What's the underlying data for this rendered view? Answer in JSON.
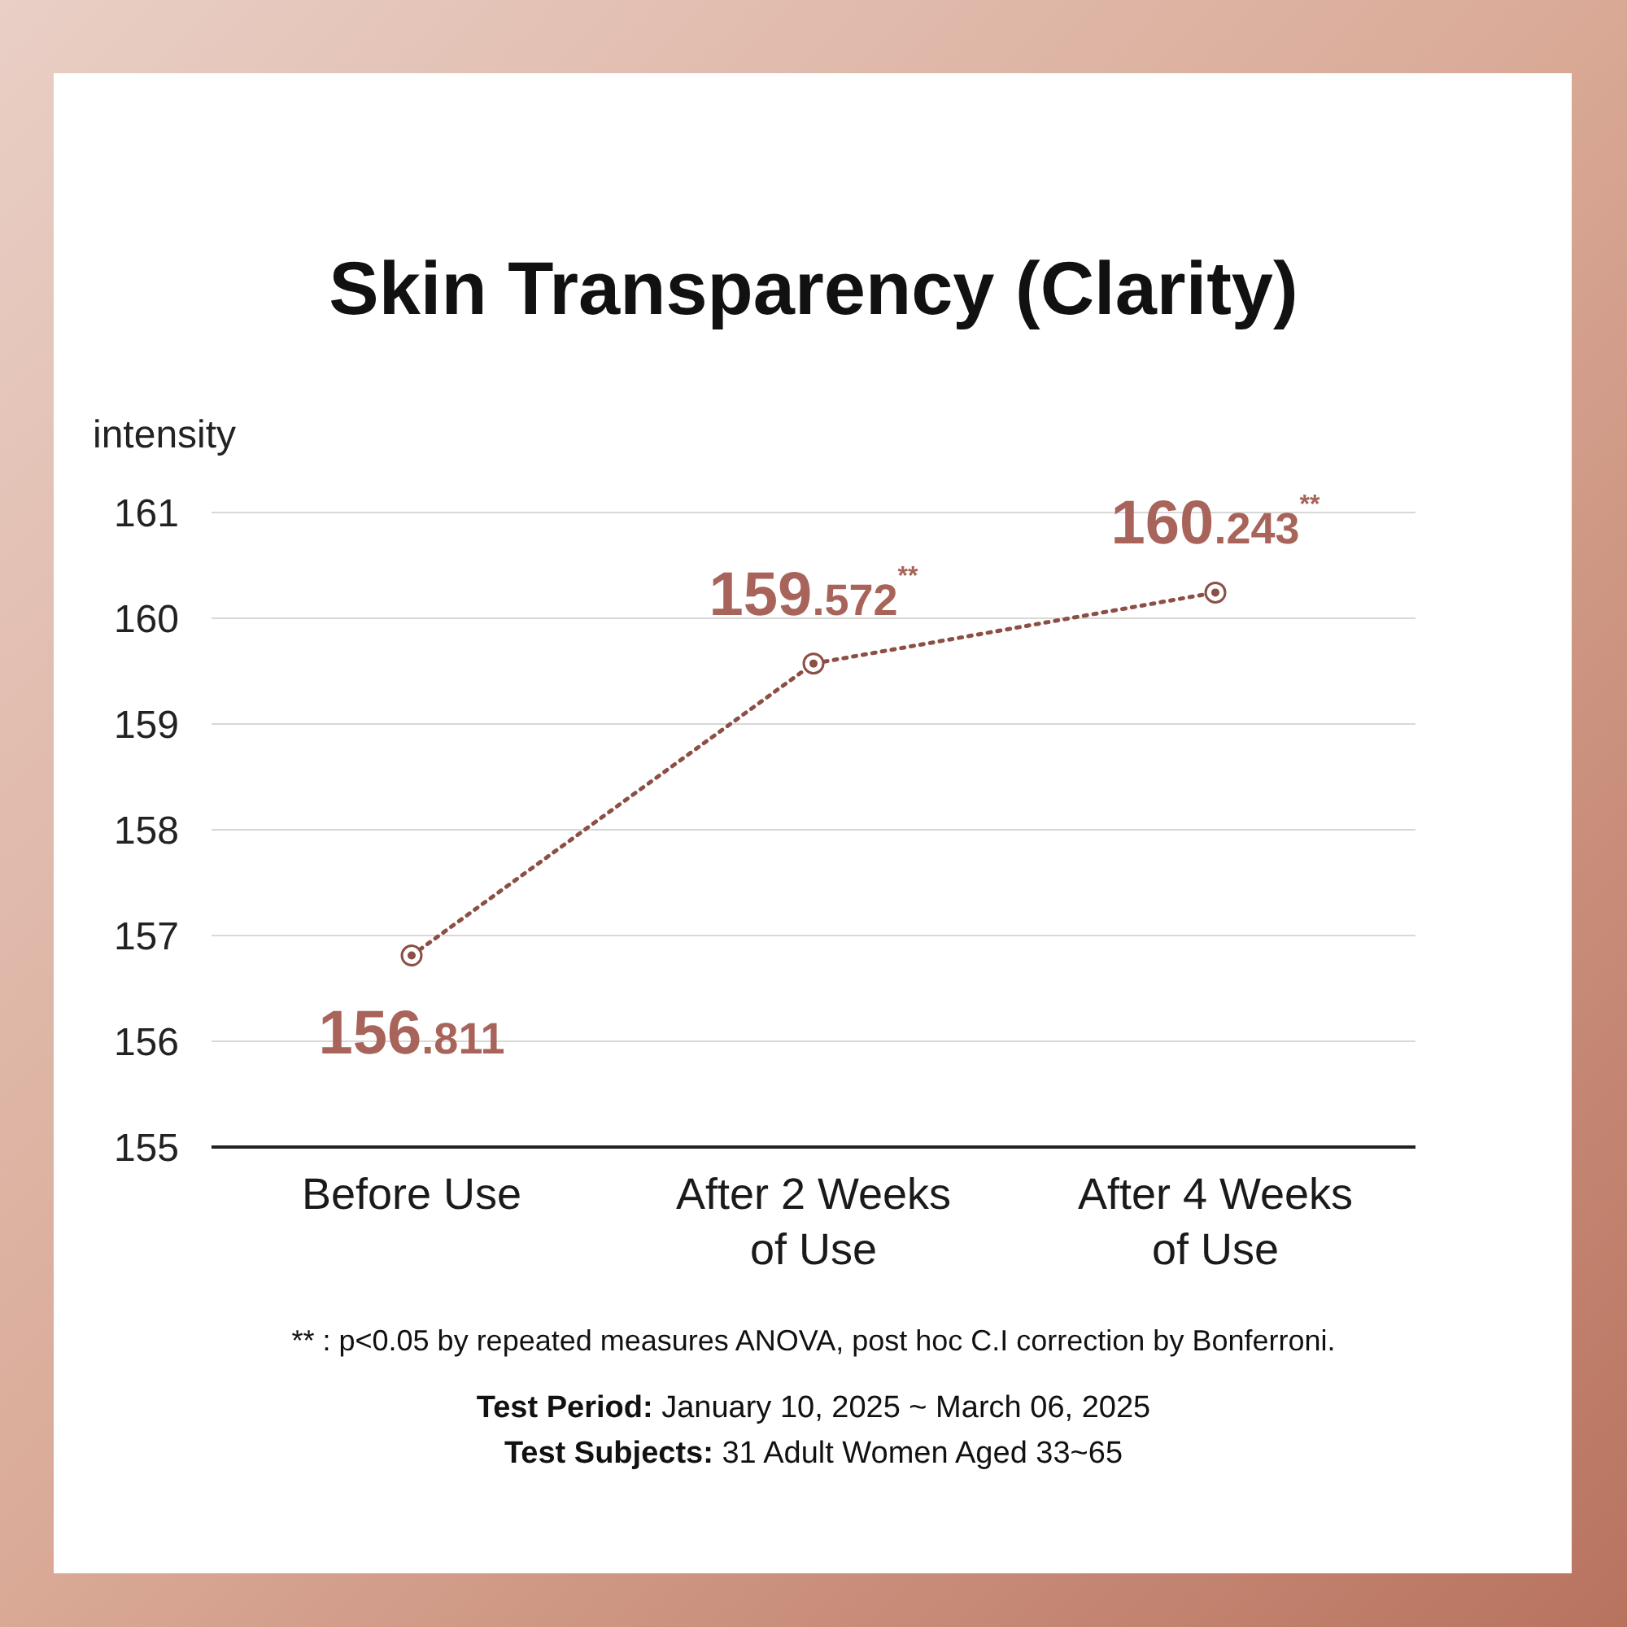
{
  "chart_data": {
    "type": "line",
    "title": "Skin Transparency (Clarity)",
    "ylabel": "intensity",
    "categories": [
      "Before Use",
      "After 2 Weeks of Use",
      "After 4 Weeks of Use"
    ],
    "series": [
      {
        "color": "#8c4f45",
        "values": [
          156.811,
          159.572,
          160.243
        ],
        "value_labels": [
          "156.811",
          "159.572$^{**}$",
          "160.243$^{**}$"
        ]
      }
    ],
    "ylim": [
      155,
      161
    ],
    "yticks": [
      155,
      156,
      157,
      158,
      159,
      160,
      161
    ],
    "grid": "y",
    "marker": "circle",
    "line_style": "dotted",
    "annotations": [
      "** : p<0.05 by repeated measures ANOVA, post hoc C.I correction by Bonferroni.",
      "Test Period: January 10, 2025 ~ March 06, 2025",
      "Test Subjects: 31 Adult Women Aged 33~65"
    ]
  }
}
